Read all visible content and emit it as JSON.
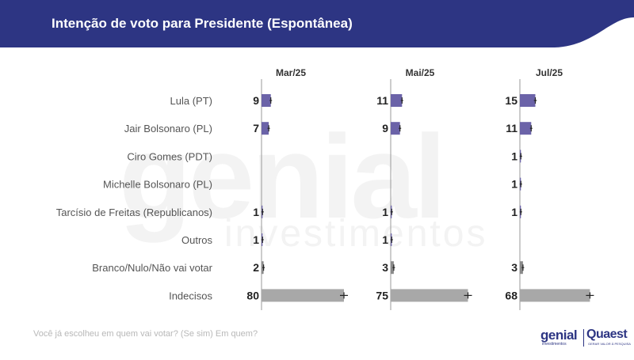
{
  "header": {
    "title": "Intenção de voto para Presidente (Espontânea)",
    "color": "#2d3583"
  },
  "watermark": {
    "line1": "genial",
    "line2": "investimentos"
  },
  "chart_data": {
    "type": "bar",
    "orientation": "horizontal",
    "categories": [
      "Lula (PT)",
      "Jair Bolsonaro (PL)",
      "Ciro Gomes (PDT)",
      "Michelle Bolsonaro (PL)",
      "Tarcísio de Freitas (Republicanos)",
      "Outros",
      "Branco/Nulo/Não vai votar",
      "Indecisos"
    ],
    "series": [
      {
        "name": "Mar/25",
        "values": [
          9,
          7,
          null,
          null,
          1,
          1,
          2,
          80
        ]
      },
      {
        "name": "Mai/25",
        "values": [
          11,
          9,
          null,
          null,
          1,
          1,
          3,
          75
        ]
      },
      {
        "name": "Jul/25",
        "values": [
          15,
          11,
          1,
          1,
          1,
          null,
          3,
          68
        ]
      }
    ],
    "colors": {
      "candidates": "#6b63a8",
      "blank": "#8a8a8a",
      "undecided": "#a8a8a8"
    },
    "grey_categories": [
      "Branco/Nulo/Não vai votar",
      "Indecisos"
    ],
    "xlim": [
      0,
      100
    ],
    "error_bars": true
  },
  "footer": {
    "question": "Você já escolheu em quem vai votar? (Se sim) Em quem?"
  },
  "logos": {
    "genial": "genial",
    "genial_sub": "investimentos",
    "quaest": "Quaest",
    "quaest_sub": "GERAR VALOR À PESQUISA"
  }
}
